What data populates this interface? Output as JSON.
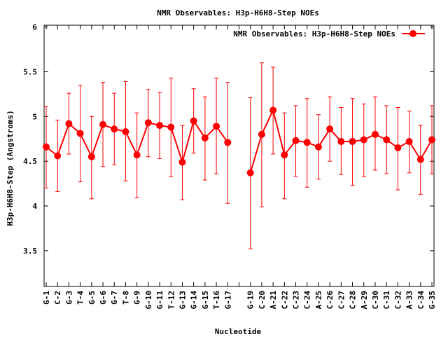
{
  "chart_data": {
    "type": "line",
    "title": "NMR Observables: H3p-H6H8-Step NOEs",
    "xlabel": "Nucleotide",
    "ylabel": "H3p-H6H8-Step (Angstroms)",
    "ylim": [
      3.1,
      6.02
    ],
    "yticks": [
      "3.5",
      "4",
      "4.5",
      "5",
      "5.5",
      "6"
    ],
    "ytick_values": [
      3.5,
      4,
      4.5,
      5,
      5.5,
      6
    ],
    "grid": false,
    "legend_position": "top-right",
    "series_color": "#ff0000",
    "categories": [
      "G-1",
      "C-2",
      "G-3",
      "T-4",
      "G-5",
      "G-6",
      "G-7",
      "T-8",
      "G-9",
      "G-10",
      "G-11",
      "T-12",
      "G-13",
      "G-14",
      "G-15",
      "T-16",
      "G-17",
      "",
      "G-19",
      "C-20",
      "A-21",
      "C-22",
      "C-23",
      "C-24",
      "A-25",
      "C-26",
      "C-27",
      "C-28",
      "A-29",
      "C-30",
      "C-31",
      "C-32",
      "A-33",
      "C-34",
      "G-35"
    ],
    "series": [
      {
        "name": "NMR Observables: H3p-H6H8-Step NOEs",
        "values": [
          4.66,
          4.56,
          4.92,
          4.81,
          4.55,
          4.91,
          4.86,
          4.83,
          4.57,
          4.93,
          4.9,
          4.88,
          4.49,
          4.95,
          4.76,
          4.89,
          4.71,
          null,
          4.37,
          4.8,
          5.07,
          4.57,
          4.73,
          4.71,
          4.66,
          4.86,
          4.72,
          4.72,
          4.74,
          4.8,
          4.74,
          4.65,
          4.72,
          4.52,
          4.74
        ],
        "err_low": [
          4.2,
          4.16,
          4.58,
          4.27,
          4.08,
          4.44,
          4.46,
          4.28,
          4.09,
          4.55,
          4.53,
          4.33,
          4.07,
          4.59,
          4.29,
          4.36,
          4.03,
          null,
          3.52,
          3.99,
          4.58,
          4.08,
          4.33,
          4.21,
          4.3,
          4.5,
          4.35,
          4.23,
          4.33,
          4.4,
          4.36,
          4.18,
          4.37,
          4.13,
          4.36
        ],
        "err_high": [
          5.11,
          4.96,
          5.26,
          5.35,
          5.0,
          5.38,
          5.26,
          5.39,
          5.04,
          5.3,
          5.27,
          5.43,
          4.9,
          5.31,
          5.22,
          5.43,
          5.38,
          null,
          5.21,
          5.6,
          5.55,
          5.04,
          5.12,
          5.2,
          5.02,
          5.22,
          5.1,
          5.2,
          5.14,
          5.22,
          5.12,
          5.1,
          5.06,
          4.9,
          5.12
        ]
      }
    ]
  }
}
